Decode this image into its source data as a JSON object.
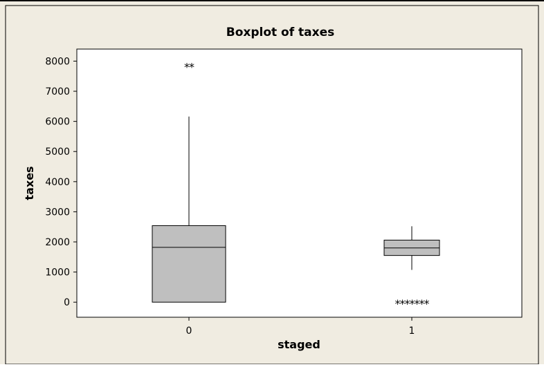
{
  "chart_data": {
    "type": "boxplot",
    "title": "Boxplot of taxes",
    "xlabel": "staged",
    "ylabel": "taxes",
    "ylim": [
      -500,
      8400
    ],
    "yticks": [
      0,
      1000,
      2000,
      3000,
      4000,
      5000,
      6000,
      7000,
      8000
    ],
    "grid": false,
    "colors": {
      "background": "#f0ece1",
      "plot_area": "#ffffff",
      "box_fill": "#bfbfbf",
      "stroke": "#000000"
    },
    "categories": [
      "0",
      "1"
    ],
    "boxes": [
      {
        "category": "0",
        "whisker_low": 0,
        "q1": 0,
        "median": 1820,
        "q3": 2540,
        "whisker_high": 6160,
        "outliers": [
          7860,
          7860
        ],
        "outlier_marker": "**"
      },
      {
        "category": "1",
        "whisker_low": 1070,
        "q1": 1550,
        "median": 1800,
        "q3": 2060,
        "whisker_high": 2520,
        "outliers": [
          0,
          0,
          0,
          0,
          0,
          0,
          0
        ],
        "outlier_marker": "*******"
      }
    ]
  }
}
